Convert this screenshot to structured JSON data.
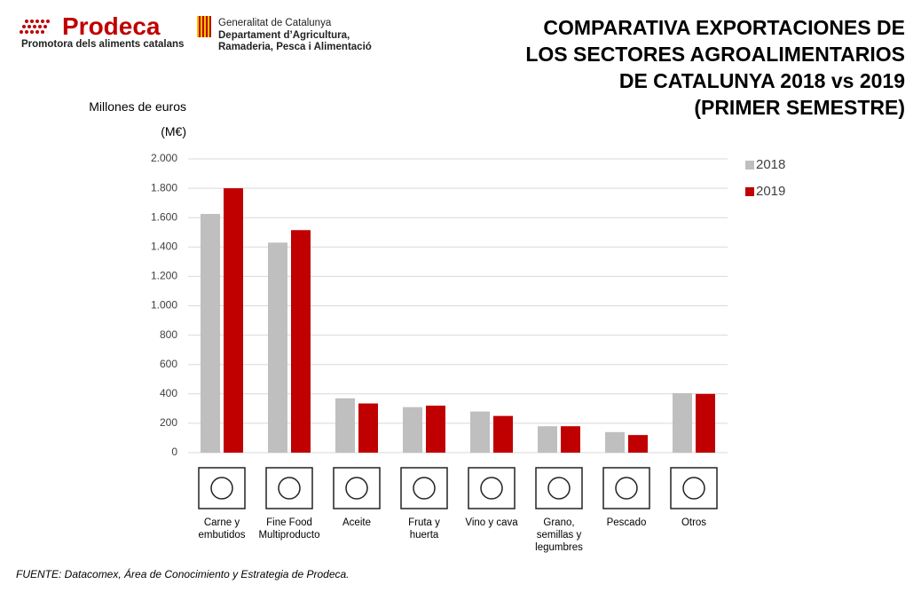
{
  "header": {
    "brand": "Prodeca",
    "brand_subtitle": "Promotora dels aliments catalans",
    "institution": "Generalitat de Catalunya",
    "department": "Departament d’Agricultura,\nRamaderia, Pesca i Alimentació"
  },
  "chart_data": {
    "type": "bar",
    "title": "COMPARATIVA EXPORTACIONES DE\nLOS SECTORES AGROALIMENTARIOS\nDE CATALUNYA 2018 vs 2019\n(PRIMER SEMESTRE)",
    "y_label": "Millones de euros\n(M€)",
    "categories": [
      "Carne y\nembutidos",
      "Fine Food\nMultiproducto",
      "Aceite",
      "Fruta y\nhuerta",
      "Vino y cava",
      "Grano,\nsemillas y\nlegumbres",
      "Pescado",
      "Otros"
    ],
    "series": [
      {
        "name": "2018",
        "color": "#bfbfbf",
        "values": [
          1625,
          1430,
          370,
          310,
          280,
          180,
          140,
          405
        ]
      },
      {
        "name": "2019",
        "color": "#c00000",
        "values": [
          1800,
          1515,
          335,
          320,
          250,
          180,
          120,
          400
        ]
      }
    ],
    "ylim": [
      0,
      2000
    ],
    "yticks": [
      0,
      200,
      400,
      600,
      800,
      {
        "value": 1000,
        "label": "1.000"
      },
      {
        "value": 1200,
        "label": "1.200"
      },
      {
        "value": 1400,
        "label": "1.400"
      },
      {
        "value": 1600,
        "label": "1.600"
      },
      {
        "value": 1800,
        "label": "1.800"
      },
      {
        "value": 2000,
        "label": "2.000"
      }
    ],
    "grid": true,
    "legend": "right",
    "source": "FUENTE:  Datacomex, Área de Conocimiento y Estrategia de Prodeca."
  }
}
